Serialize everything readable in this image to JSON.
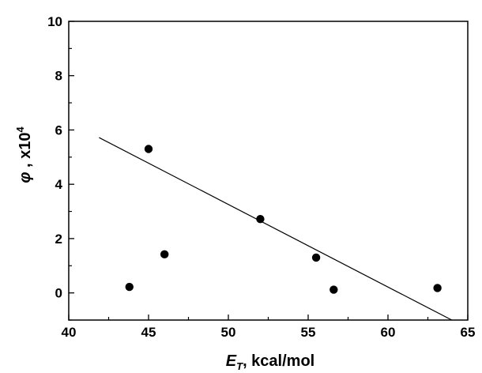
{
  "chart_data": {
    "type": "scatter",
    "title": "",
    "xlabel": {
      "symbol": "E",
      "subscript": "T",
      "suffix": ",  kcal/mol"
    },
    "ylabel": {
      "symbol": "φ",
      "suffix": " , x10",
      "superscript": "4"
    },
    "xlim": [
      40,
      65
    ],
    "ylim": [
      -1,
      10
    ],
    "xticks": [
      40,
      45,
      50,
      55,
      60,
      65
    ],
    "yticks": [
      0,
      2,
      4,
      6,
      8,
      10
    ],
    "grid": false,
    "legend": "none",
    "series": [
      {
        "kind": "points",
        "color": "#000000",
        "x": [
          43.8,
          45.0,
          46.0,
          52.0,
          55.5,
          56.6,
          63.1
        ],
        "y": [
          0.22,
          5.3,
          1.42,
          2.72,
          1.3,
          0.12,
          0.18
        ]
      },
      {
        "kind": "fit-line",
        "color": "#000000",
        "x": [
          41.9,
          64.0
        ],
        "y": [
          5.72,
          -1.0
        ]
      }
    ]
  }
}
